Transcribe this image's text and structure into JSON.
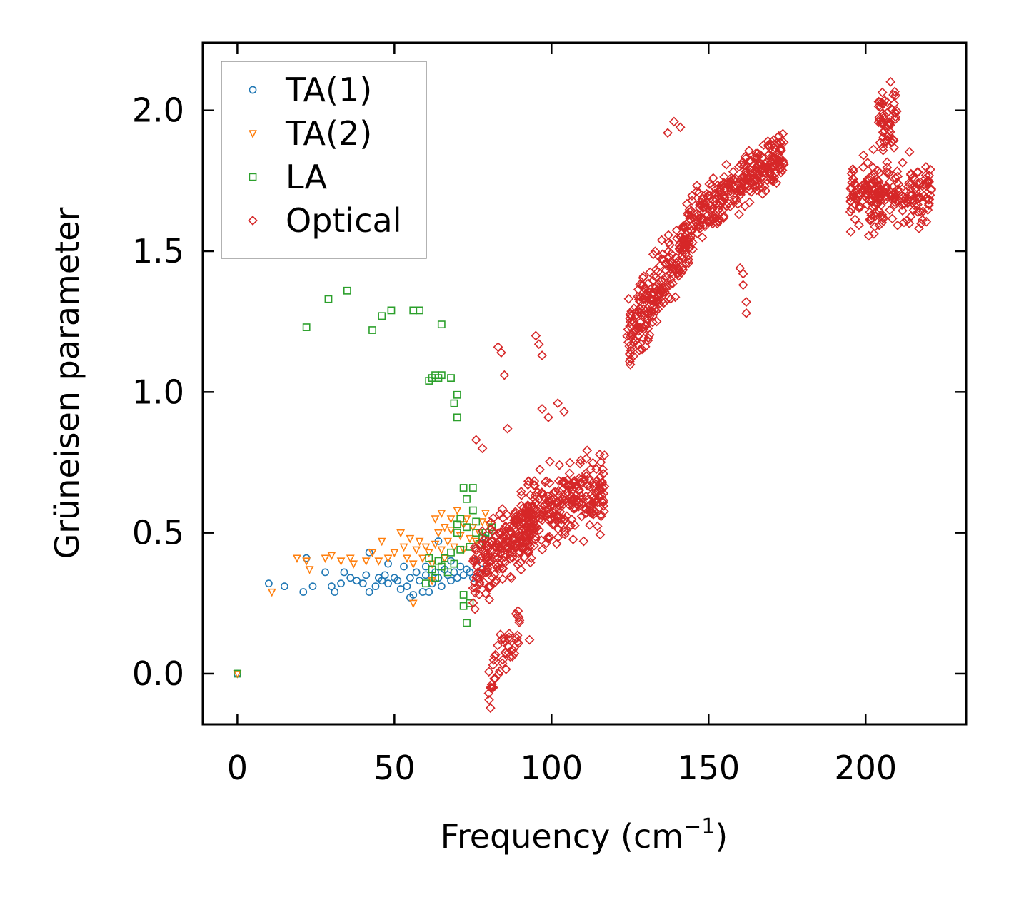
{
  "chart_data": {
    "type": "scatter",
    "title": "",
    "xlabel": "Frequency (cm",
    "xlabel_sup": "−1",
    "xlabel_close": ")",
    "ylabel": "Grüneisen parameter",
    "xlim": [
      -11,
      232
    ],
    "ylim": [
      -0.18,
      2.24
    ],
    "xticks": [
      0,
      50,
      100,
      150,
      200
    ],
    "xtick_labels": [
      "0",
      "50",
      "100",
      "150",
      "200"
    ],
    "yticks": [
      0.0,
      0.5,
      1.0,
      1.5,
      2.0
    ],
    "ytick_labels": [
      "0.0",
      "0.5",
      "1.0",
      "1.5",
      "2.0"
    ],
    "grid": false,
    "legend_position": "top-left",
    "series": [
      {
        "name": "TA(1)",
        "marker": "circle",
        "color": "#1f77b4",
        "points": [
          [
            0,
            0
          ],
          [
            10,
            0.32
          ],
          [
            15,
            0.31
          ],
          [
            21,
            0.29
          ],
          [
            22,
            0.41
          ],
          [
            24,
            0.31
          ],
          [
            28,
            0.36
          ],
          [
            30,
            0.31
          ],
          [
            31,
            0.29
          ],
          [
            33,
            0.32
          ],
          [
            34,
            0.36
          ],
          [
            36,
            0.34
          ],
          [
            38,
            0.33
          ],
          [
            40,
            0.32
          ],
          [
            41,
            0.35
          ],
          [
            42,
            0.29
          ],
          [
            42,
            0.43
          ],
          [
            44,
            0.31
          ],
          [
            45,
            0.34
          ],
          [
            46,
            0.33
          ],
          [
            47,
            0.35
          ],
          [
            48,
            0.32
          ],
          [
            48,
            0.39
          ],
          [
            50,
            0.34
          ],
          [
            51,
            0.33
          ],
          [
            52,
            0.3
          ],
          [
            53,
            0.38
          ],
          [
            54,
            0.31
          ],
          [
            55,
            0.34
          ],
          [
            55,
            0.27
          ],
          [
            56,
            0.28
          ],
          [
            57,
            0.36
          ],
          [
            58,
            0.33
          ],
          [
            59,
            0.29
          ],
          [
            60,
            0.35
          ],
          [
            60,
            0.38
          ],
          [
            61,
            0.29
          ],
          [
            62,
            0.32
          ],
          [
            63,
            0.36
          ],
          [
            64,
            0.34
          ],
          [
            64,
            0.47
          ],
          [
            65,
            0.31
          ],
          [
            66,
            0.37
          ],
          [
            67,
            0.35
          ],
          [
            68,
            0.33
          ],
          [
            68,
            0.4
          ],
          [
            69,
            0.36
          ],
          [
            70,
            0.34
          ],
          [
            71,
            0.38
          ],
          [
            72,
            0.35
          ],
          [
            73,
            0.37
          ],
          [
            74,
            0.36
          ],
          [
            75,
            0.34
          ],
          [
            76,
            0.4
          ],
          [
            78,
            0.37
          ],
          [
            79,
            0.48
          ]
        ]
      },
      {
        "name": "TA(2)",
        "marker": "triangle-down",
        "color": "#ff7f0e",
        "points": [
          [
            0,
            0
          ],
          [
            11,
            0.29
          ],
          [
            19,
            0.41
          ],
          [
            22,
            0.4
          ],
          [
            23,
            0.37
          ],
          [
            28,
            0.41
          ],
          [
            30,
            0.42
          ],
          [
            33,
            0.4
          ],
          [
            36,
            0.41
          ],
          [
            37,
            0.39
          ],
          [
            41,
            0.4
          ],
          [
            43,
            0.43
          ],
          [
            45,
            0.4
          ],
          [
            46,
            0.47
          ],
          [
            48,
            0.41
          ],
          [
            50,
            0.43
          ],
          [
            52,
            0.5
          ],
          [
            53,
            0.45
          ],
          [
            54,
            0.41
          ],
          [
            55,
            0.48
          ],
          [
            56,
            0.39
          ],
          [
            56,
            0.25
          ],
          [
            57,
            0.44
          ],
          [
            58,
            0.47
          ],
          [
            59,
            0.41
          ],
          [
            60,
            0.45
          ],
          [
            61,
            0.43
          ],
          [
            62,
            0.39
          ],
          [
            62,
            0.33
          ],
          [
            63,
            0.46
          ],
          [
            63,
            0.55
          ],
          [
            64,
            0.5
          ],
          [
            65,
            0.44
          ],
          [
            65,
            0.57
          ],
          [
            66,
            0.41
          ],
          [
            66,
            0.52
          ],
          [
            67,
            0.47
          ],
          [
            68,
            0.51
          ],
          [
            68,
            0.55
          ],
          [
            69,
            0.45
          ],
          [
            70,
            0.58
          ],
          [
            71,
            0.49
          ],
          [
            72,
            0.53
          ],
          [
            72,
            0.44
          ],
          [
            73,
            0.55
          ],
          [
            74,
            0.48
          ],
          [
            75,
            0.52
          ],
          [
            76,
            0.47
          ],
          [
            77,
            0.5
          ],
          [
            78,
            0.54
          ],
          [
            79,
            0.57
          ],
          [
            80,
            0.53
          ]
        ]
      },
      {
        "name": "LA",
        "marker": "square",
        "color": "#2ca02c",
        "points": [
          [
            0,
            0
          ],
          [
            22,
            1.23
          ],
          [
            29,
            1.33
          ],
          [
            35,
            1.36
          ],
          [
            43,
            1.22
          ],
          [
            46,
            1.27
          ],
          [
            49,
            1.29
          ],
          [
            56,
            1.29
          ],
          [
            58,
            1.29
          ],
          [
            65,
            1.24
          ],
          [
            61,
            1.04
          ],
          [
            62,
            1.05
          ],
          [
            63,
            1.06
          ],
          [
            64,
            1.05
          ],
          [
            65,
            1.06
          ],
          [
            68,
            1.05
          ],
          [
            69,
            0.96
          ],
          [
            70,
            0.99
          ],
          [
            70,
            0.91
          ],
          [
            60,
            0.32
          ],
          [
            61,
            0.41
          ],
          [
            62,
            0.37
          ],
          [
            63,
            0.34
          ],
          [
            64,
            0.4
          ],
          [
            65,
            0.38
          ],
          [
            66,
            0.41
          ],
          [
            67,
            0.36
          ],
          [
            68,
            0.43
          ],
          [
            69,
            0.39
          ],
          [
            70,
            0.5
          ],
          [
            70,
            0.53
          ],
          [
            71,
            0.55
          ],
          [
            71,
            0.44
          ],
          [
            72,
            0.66
          ],
          [
            72,
            0.28
          ],
          [
            72,
            0.24
          ],
          [
            73,
            0.18
          ],
          [
            73,
            0.62
          ],
          [
            73,
            0.52
          ],
          [
            74,
            0.25
          ],
          [
            74,
            0.45
          ],
          [
            75,
            0.66
          ],
          [
            75,
            0.58
          ],
          [
            76,
            0.5
          ],
          [
            76,
            0.54
          ],
          [
            77,
            0.46
          ],
          [
            78,
            0.48
          ],
          [
            79,
            0.5
          ],
          [
            80,
            0.49
          ],
          [
            81,
            0.52
          ]
        ]
      },
      {
        "name": "Optical",
        "marker": "diamond",
        "color": "#d62728",
        "clusters": [
          {
            "x_range": [
              75,
              95
            ],
            "y_center": 0.45,
            "y_spread": 0.12,
            "trend": 0.01,
            "n": 220
          },
          {
            "x_range": [
              80,
              90
            ],
            "y_center": 0.08,
            "y_spread": 0.1,
            "trend": 0.02,
            "n": 45
          },
          {
            "x_range": [
              90,
              117
            ],
            "y_center": 0.6,
            "y_spread": 0.13,
            "trend": 0.005,
            "n": 260
          },
          {
            "x_range": [
              124,
              145
            ],
            "y_center": 1.38,
            "y_spread": 0.12,
            "trend": 0.02,
            "n": 260
          },
          {
            "x_range": [
              146,
              174
            ],
            "y_center": 1.74,
            "y_spread": 0.09,
            "trend": 0.008,
            "n": 280
          },
          {
            "x_range": [
              195,
              221
            ],
            "y_center": 1.7,
            "y_spread": 0.11,
            "trend": 0.0,
            "n": 230
          },
          {
            "x_range": [
              204,
              210
            ],
            "y_center": 1.98,
            "y_spread": 0.1,
            "trend": 0.0,
            "n": 60
          }
        ],
        "points": [
          [
            83,
            1.16
          ],
          [
            84,
            1.14
          ],
          [
            85,
            1.06
          ],
          [
            95,
            1.2
          ],
          [
            96,
            1.17
          ],
          [
            97,
            1.13
          ],
          [
            97,
            0.94
          ],
          [
            99,
            0.91
          ],
          [
            102,
            0.96
          ],
          [
            104,
            0.93
          ],
          [
            137,
            1.92
          ],
          [
            139,
            1.96
          ],
          [
            141,
            1.94
          ],
          [
            161,
            1.42
          ],
          [
            161,
            1.38
          ],
          [
            162,
            1.28
          ],
          [
            162,
            1.32
          ],
          [
            160,
            1.44
          ],
          [
            80,
            -0.07
          ],
          [
            81,
            -0.05
          ],
          [
            93,
            0.12
          ],
          [
            76,
            0.83
          ],
          [
            78,
            0.8
          ],
          [
            86,
            0.87
          ]
        ]
      }
    ]
  }
}
